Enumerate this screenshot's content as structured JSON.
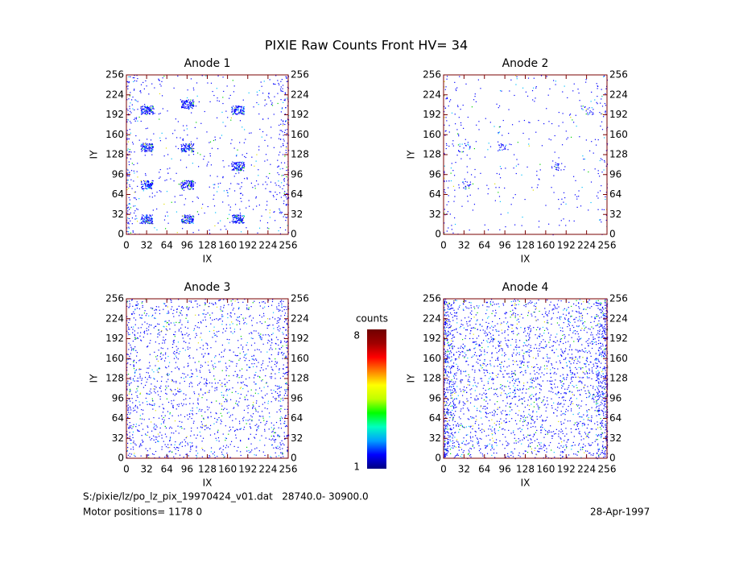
{
  "chart_data": [
    {
      "type": "heatmap",
      "title": "Anode 1",
      "xlabel": "IX",
      "ylabel": "IY",
      "xlim": [
        0,
        256
      ],
      "ylim": [
        0,
        256
      ],
      "xticks": [
        0,
        32,
        64,
        96,
        128,
        160,
        192,
        224,
        256
      ],
      "yticks": [
        0,
        32,
        64,
        96,
        128,
        160,
        192,
        224,
        256
      ]
    },
    {
      "type": "heatmap",
      "title": "Anode 2",
      "xlabel": "IX",
      "ylabel": "IY",
      "xlim": [
        0,
        256
      ],
      "ylim": [
        0,
        256
      ],
      "xticks": [
        0,
        32,
        64,
        96,
        128,
        160,
        192,
        224,
        256
      ],
      "yticks": [
        0,
        32,
        64,
        96,
        128,
        160,
        192,
        224,
        256
      ]
    },
    {
      "type": "heatmap",
      "title": "Anode 3",
      "xlabel": "IX",
      "ylabel": "IY",
      "xlim": [
        0,
        256
      ],
      "ylim": [
        0,
        256
      ],
      "xticks": [
        0,
        32,
        64,
        96,
        128,
        160,
        192,
        224,
        256
      ],
      "yticks": [
        0,
        32,
        64,
        96,
        128,
        160,
        192,
        224,
        256
      ]
    },
    {
      "type": "heatmap",
      "title": "Anode 4",
      "xlabel": "IX",
      "ylabel": "IY",
      "xlim": [
        0,
        256
      ],
      "ylim": [
        0,
        256
      ],
      "xticks": [
        0,
        32,
        64,
        96,
        128,
        160,
        192,
        224,
        256
      ],
      "yticks": [
        0,
        32,
        64,
        96,
        128,
        160,
        192,
        224,
        256
      ]
    }
  ],
  "title": "PIXIE Raw Counts Front HV= 34",
  "colorbar": {
    "label": "counts",
    "range": [
      1,
      8
    ],
    "colors": [
      "#000080",
      "#0000ff",
      "#00a0ff",
      "#00ffc0",
      "#00ff00",
      "#c0ff00",
      "#ffff00",
      "#ff8000",
      "#ff0000",
      "#a00000",
      "#700000"
    ]
  },
  "footer": {
    "file": "S:/pixie/lz/po_lz_pix_19970424_v01.dat   28740.0- 30900.0",
    "motor": "Motor positions= 1178 0",
    "date": "28-Apr-1997"
  }
}
